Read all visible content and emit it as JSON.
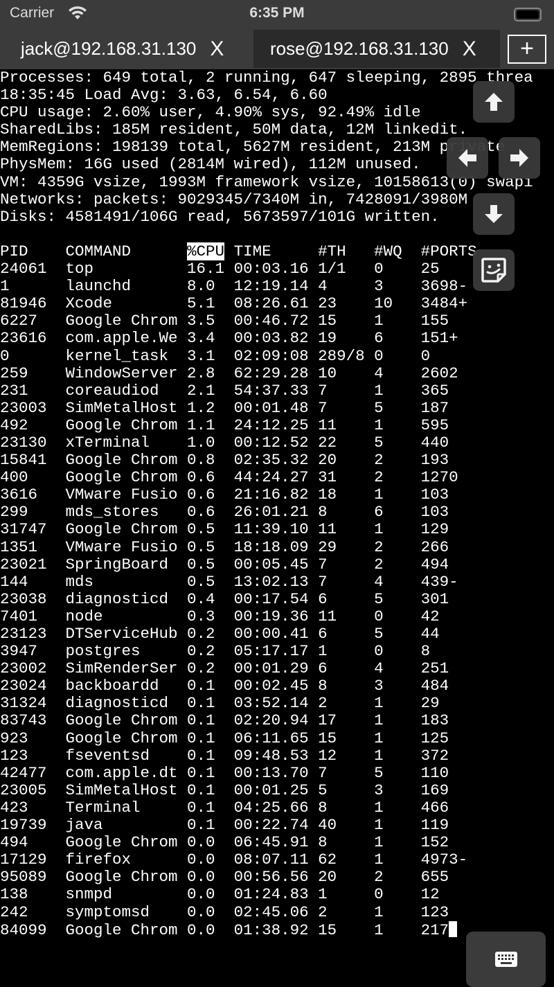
{
  "status_bar": {
    "carrier": "Carrier",
    "time": "6:35 PM"
  },
  "tabs": [
    {
      "label": "jack@192.168.31.130",
      "close": "X",
      "active": false
    },
    {
      "label": "rose@192.168.31.130",
      "close": "X",
      "active": true
    }
  ],
  "new_tab_label": "+",
  "terminal": {
    "summary": [
      "Processes: 649 total, 2 running, 647 sleeping, 2895 threa",
      "18:35:45 Load Avg: 3.63, 6.54, 6.60",
      "CPU usage: 2.60% user, 4.90% sys, 92.49% idle",
      "SharedLibs: 185M resident, 50M data, 12M linkedit.",
      "MemRegions: 198139 total, 5627M resident, 213M private",
      "PhysMem: 16G used (2814M wired), 112M unused.",
      "VM: 4359G vsize, 1993M framework vsize, 10158613(0) swapi",
      "Networks: packets: 9029345/7340M in, 7428091/3980M",
      "Disks: 4581491/106G read, 5673597/101G written."
    ],
    "columns": [
      "PID",
      "COMMAND",
      "%CPU",
      "TIME",
      "#TH",
      "#WQ",
      "#PORTS"
    ],
    "sorted_column": "%CPU",
    "rows": [
      [
        "24061",
        "top",
        "16.1",
        "00:03.16",
        "1/1",
        "0",
        "25"
      ],
      [
        "1",
        "launchd",
        "8.0",
        "12:19.14",
        "4",
        "3",
        "3698-"
      ],
      [
        "81946",
        "Xcode",
        "5.1",
        "08:26.61",
        "23",
        "10",
        "3484+"
      ],
      [
        "6227",
        "Google Chrom",
        "3.5",
        "00:46.72",
        "15",
        "1",
        "155"
      ],
      [
        "23616",
        "com.apple.We",
        "3.4",
        "00:03.82",
        "19",
        "6",
        "151+"
      ],
      [
        "0",
        "kernel_task",
        "3.1",
        "02:09:08",
        "289/8",
        "0",
        "0"
      ],
      [
        "259",
        "WindowServer",
        "2.8",
        "62:29.28",
        "10",
        "4",
        "2602"
      ],
      [
        "231",
        "coreaudiod",
        "2.1",
        "54:37.33",
        "7",
        "1",
        "365"
      ],
      [
        "23003",
        "SimMetalHost",
        "1.2",
        "00:01.48",
        "7",
        "5",
        "187"
      ],
      [
        "492",
        "Google Chrom",
        "1.1",
        "24:12.25",
        "11",
        "1",
        "595"
      ],
      [
        "23130",
        "xTerminal",
        "1.0",
        "00:12.52",
        "22",
        "5",
        "440"
      ],
      [
        "15841",
        "Google Chrom",
        "0.8",
        "02:35.32",
        "20",
        "2",
        "193"
      ],
      [
        "400",
        "Google Chrom",
        "0.6",
        "44:24.27",
        "31",
        "2",
        "1270"
      ],
      [
        "3616",
        "VMware Fusio",
        "0.6",
        "21:16.82",
        "18",
        "1",
        "103"
      ],
      [
        "299",
        "mds_stores",
        "0.6",
        "26:01.21",
        "8",
        "6",
        "103"
      ],
      [
        "31747",
        "Google Chrom",
        "0.5",
        "11:39.10",
        "11",
        "1",
        "129"
      ],
      [
        "1351",
        "VMware Fusio",
        "0.5",
        "18:18.09",
        "29",
        "2",
        "266"
      ],
      [
        "23021",
        "SpringBoard",
        "0.5",
        "00:05.45",
        "7",
        "2",
        "494"
      ],
      [
        "144",
        "mds",
        "0.5",
        "13:02.13",
        "7",
        "4",
        "439-"
      ],
      [
        "23038",
        "diagnosticd",
        "0.4",
        "00:17.54",
        "6",
        "5",
        "301"
      ],
      [
        "7401",
        "node",
        "0.3",
        "00:19.36",
        "11",
        "0",
        "42"
      ],
      [
        "23123",
        "DTServiceHub",
        "0.2",
        "00:00.41",
        "6",
        "5",
        "44"
      ],
      [
        "3947",
        "postgres",
        "0.2",
        "05:17.17",
        "1",
        "0",
        "8"
      ],
      [
        "23002",
        "SimRenderSer",
        "0.2",
        "00:01.29",
        "6",
        "4",
        "251"
      ],
      [
        "23024",
        "backboardd",
        "0.1",
        "00:02.45",
        "8",
        "3",
        "484"
      ],
      [
        "31324",
        "diagnosticd",
        "0.1",
        "03:52.14",
        "2",
        "1",
        "29"
      ],
      [
        "83743",
        "Google Chrom",
        "0.1",
        "02:20.94",
        "17",
        "1",
        "183"
      ],
      [
        "923",
        "Google Chrom",
        "0.1",
        "06:11.65",
        "15",
        "1",
        "125"
      ],
      [
        "123",
        "fseventsd",
        "0.1",
        "09:48.53",
        "12",
        "1",
        "372"
      ],
      [
        "42477",
        "com.apple.dt",
        "0.1",
        "00:13.70",
        "7",
        "5",
        "110"
      ],
      [
        "23005",
        "SimMetalHost",
        "0.1",
        "00:01.25",
        "5",
        "3",
        "169"
      ],
      [
        "423",
        "Terminal",
        "0.1",
        "04:25.66",
        "8",
        "1",
        "466"
      ],
      [
        "19739",
        "java",
        "0.1",
        "00:22.74",
        "40",
        "1",
        "119"
      ],
      [
        "494",
        "Google Chrom",
        "0.0",
        "06:45.91",
        "8",
        "1",
        "152"
      ],
      [
        "17129",
        "firefox",
        "0.0",
        "08:07.11",
        "62",
        "1",
        "4973-"
      ],
      [
        "95089",
        "Google Chrom",
        "0.0",
        "00:56.56",
        "20",
        "2",
        "655"
      ],
      [
        "138",
        "snmpd",
        "0.0",
        "01:24.83",
        "1",
        "0",
        "12"
      ],
      [
        "242",
        "symptomsd",
        "0.0",
        "02:45.06",
        "2",
        "1",
        "123"
      ],
      [
        "84099",
        "Google Chrom",
        "0.0",
        "01:38.92",
        "15",
        "1",
        "217"
      ]
    ]
  },
  "controls": [
    "arrow-up",
    "arrow-left",
    "arrow-right",
    "arrow-down",
    "sticker",
    "keyboard"
  ]
}
